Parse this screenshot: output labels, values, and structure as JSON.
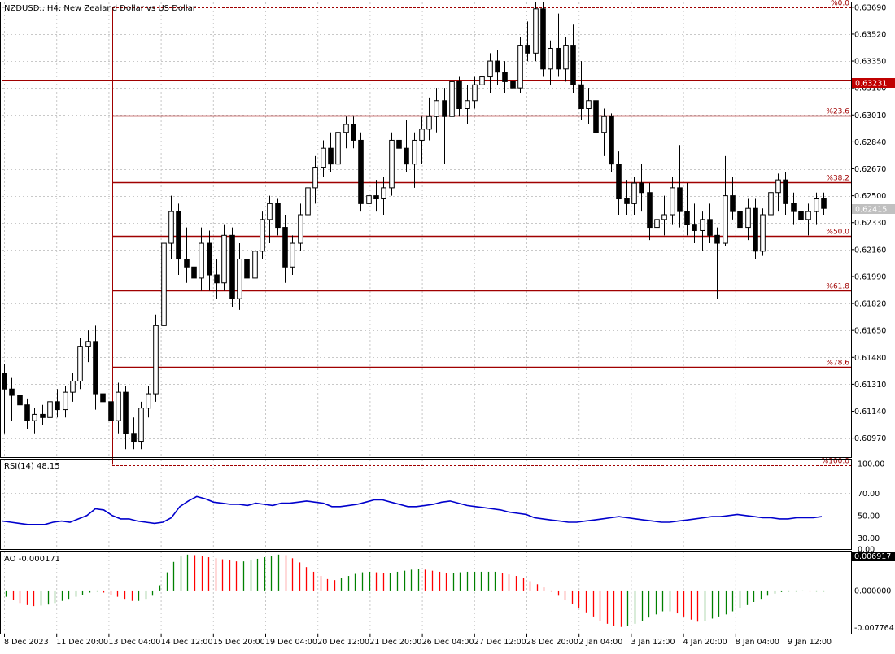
{
  "chart_data": [
    {
      "type": "candlestick",
      "title": "NZDUSD., H4:  New Zealand Dollar vs US Dollar",
      "ylim": [
        0.6085,
        0.6372
      ],
      "yticks": [
        "0.63690",
        "0.63520",
        "0.63350",
        "0.63180",
        "0.63010",
        "0.62840",
        "0.62670",
        "0.62500",
        "0.62330",
        "0.62160",
        "0.61990",
        "0.61820",
        "0.61650",
        "0.61480",
        "0.61310",
        "0.61140",
        "0.60970"
      ],
      "current_price": "0.62415",
      "hline_price": "0.63231",
      "fibonacci": [
        {
          "label": "%0.0",
          "price": 0.6369
        },
        {
          "label": "%23.6",
          "price": 0.63008
        },
        {
          "label": "%38.2",
          "price": 0.62586
        },
        {
          "label": "%50.0",
          "price": 0.62246
        },
        {
          "label": "%61.8",
          "price": 0.61905
        },
        {
          "label": "%78.6",
          "price": 0.6142
        },
        {
          "label": "%100.0",
          "price": 0.60801
        }
      ],
      "x_labels": [
        "8 Dec 2023",
        "11 Dec 20:00",
        "13 Dec 04:00",
        "14 Dec 12:00",
        "15 Dec 20:00",
        "19 Dec 04:00",
        "20 Dec 12:00",
        "21 Dec 20:00",
        "26 Dec 04:00",
        "27 Dec 12:00",
        "28 Dec 20:00",
        "2 Jan 04:00",
        "3 Jan 12:00",
        "4 Jan 20:00",
        "8 Jan 04:00",
        "9 Jan 12:00"
      ],
      "candles": [
        [
          0.6138,
          0.6144,
          0.61,
          0.6128
        ],
        [
          0.6128,
          0.6135,
          0.6108,
          0.6124
        ],
        [
          0.6124,
          0.613,
          0.6112,
          0.6118
        ],
        [
          0.6118,
          0.6122,
          0.6103,
          0.6108
        ],
        [
          0.6108,
          0.6116,
          0.61,
          0.6112
        ],
        [
          0.6112,
          0.6118,
          0.6105,
          0.611
        ],
        [
          0.611,
          0.6124,
          0.6106,
          0.612
        ],
        [
          0.612,
          0.6128,
          0.611,
          0.6115
        ],
        [
          0.6115,
          0.613,
          0.611,
          0.6126
        ],
        [
          0.6126,
          0.6138,
          0.612,
          0.6133
        ],
        [
          0.6133,
          0.616,
          0.6128,
          0.6155
        ],
        [
          0.6155,
          0.6165,
          0.6145,
          0.6158
        ],
        [
          0.6158,
          0.6168,
          0.6115,
          0.6125
        ],
        [
          0.6125,
          0.614,
          0.611,
          0.612
        ],
        [
          0.612,
          0.613,
          0.6102,
          0.6108
        ],
        [
          0.6108,
          0.6132,
          0.61,
          0.6126
        ],
        [
          0.6126,
          0.613,
          0.609,
          0.61
        ],
        [
          0.61,
          0.611,
          0.609,
          0.6095
        ],
        [
          0.6095,
          0.612,
          0.609,
          0.6116
        ],
        [
          0.6116,
          0.613,
          0.611,
          0.6125
        ],
        [
          0.6125,
          0.6175,
          0.612,
          0.6168
        ],
        [
          0.6168,
          0.623,
          0.616,
          0.622
        ],
        [
          0.622,
          0.625,
          0.621,
          0.624
        ],
        [
          0.624,
          0.6245,
          0.62,
          0.621
        ],
        [
          0.621,
          0.623,
          0.6195,
          0.6205
        ],
        [
          0.6205,
          0.6225,
          0.619,
          0.6198
        ],
        [
          0.6198,
          0.623,
          0.619,
          0.622
        ],
        [
          0.622,
          0.6228,
          0.619,
          0.62
        ],
        [
          0.62,
          0.621,
          0.6185,
          0.6195
        ],
        [
          0.6195,
          0.6232,
          0.619,
          0.6225
        ],
        [
          0.6225,
          0.623,
          0.618,
          0.6185
        ],
        [
          0.6185,
          0.622,
          0.6178,
          0.621
        ],
        [
          0.621,
          0.6215,
          0.619,
          0.6198
        ],
        [
          0.6198,
          0.622,
          0.618,
          0.6215
        ],
        [
          0.6215,
          0.624,
          0.621,
          0.6235
        ],
        [
          0.6235,
          0.625,
          0.622,
          0.6245
        ],
        [
          0.6245,
          0.6248,
          0.6225,
          0.623
        ],
        [
          0.623,
          0.6238,
          0.6195,
          0.6205
        ],
        [
          0.6205,
          0.6225,
          0.62,
          0.622
        ],
        [
          0.622,
          0.6245,
          0.6215,
          0.6238
        ],
        [
          0.6238,
          0.626,
          0.623,
          0.6255
        ],
        [
          0.6255,
          0.6275,
          0.6245,
          0.6268
        ],
        [
          0.6268,
          0.6285,
          0.6262,
          0.628
        ],
        [
          0.628,
          0.629,
          0.6265,
          0.627
        ],
        [
          0.627,
          0.6295,
          0.6265,
          0.629
        ],
        [
          0.629,
          0.63,
          0.628,
          0.6295
        ],
        [
          0.6295,
          0.63,
          0.628,
          0.6285
        ],
        [
          0.6285,
          0.629,
          0.624,
          0.6245
        ],
        [
          0.6245,
          0.626,
          0.623,
          0.625
        ],
        [
          0.625,
          0.626,
          0.624,
          0.6248
        ],
        [
          0.6248,
          0.6262,
          0.6238,
          0.6255
        ],
        [
          0.6255,
          0.629,
          0.625,
          0.6285
        ],
        [
          0.6285,
          0.6295,
          0.627,
          0.628
        ],
        [
          0.628,
          0.6298,
          0.6265,
          0.627
        ],
        [
          0.627,
          0.629,
          0.6255,
          0.6285
        ],
        [
          0.6285,
          0.63,
          0.627,
          0.6292
        ],
        [
          0.6292,
          0.6312,
          0.6285,
          0.63
        ],
        [
          0.63,
          0.6318,
          0.629,
          0.631
        ],
        [
          0.631,
          0.6318,
          0.627,
          0.63
        ],
        [
          0.63,
          0.6325,
          0.629,
          0.6322
        ],
        [
          0.6322,
          0.6325,
          0.63,
          0.6305
        ],
        [
          0.6305,
          0.632,
          0.6295,
          0.631
        ],
        [
          0.631,
          0.6325,
          0.6305,
          0.632
        ],
        [
          0.632,
          0.633,
          0.631,
          0.6325
        ],
        [
          0.6325,
          0.634,
          0.6315,
          0.6335
        ],
        [
          0.6335,
          0.6342,
          0.632,
          0.6328
        ],
        [
          0.6328,
          0.6335,
          0.6315,
          0.6322
        ],
        [
          0.6322,
          0.633,
          0.631,
          0.6318
        ],
        [
          0.6318,
          0.635,
          0.6315,
          0.6345
        ],
        [
          0.6345,
          0.636,
          0.6335,
          0.634
        ],
        [
          0.634,
          0.6372,
          0.6335,
          0.6368
        ],
        [
          0.6368,
          0.6372,
          0.6325,
          0.633
        ],
        [
          0.633,
          0.6348,
          0.632,
          0.6343
        ],
        [
          0.6343,
          0.6365,
          0.6325,
          0.633
        ],
        [
          0.633,
          0.635,
          0.6322,
          0.6345
        ],
        [
          0.6345,
          0.6358,
          0.6315,
          0.632
        ],
        [
          0.632,
          0.6335,
          0.6298,
          0.6305
        ],
        [
          0.6305,
          0.6318,
          0.6295,
          0.631
        ],
        [
          0.631,
          0.6318,
          0.628,
          0.629
        ],
        [
          0.629,
          0.6305,
          0.6275,
          0.63
        ],
        [
          0.63,
          0.6302,
          0.6265,
          0.627
        ],
        [
          0.627,
          0.6278,
          0.6238,
          0.6248
        ],
        [
          0.6248,
          0.626,
          0.6238,
          0.6245
        ],
        [
          0.6245,
          0.6262,
          0.6238,
          0.6258
        ],
        [
          0.6258,
          0.627,
          0.624,
          0.6252
        ],
        [
          0.6252,
          0.6258,
          0.6222,
          0.623
        ],
        [
          0.623,
          0.6242,
          0.6218,
          0.6235
        ],
        [
          0.6235,
          0.625,
          0.6225,
          0.6238
        ],
        [
          0.6238,
          0.6262,
          0.6232,
          0.6255
        ],
        [
          0.6255,
          0.6282,
          0.623,
          0.624
        ],
        [
          0.624,
          0.6258,
          0.6225,
          0.6232
        ],
        [
          0.6232,
          0.6245,
          0.622,
          0.6228
        ],
        [
          0.6228,
          0.624,
          0.6215,
          0.6235
        ],
        [
          0.6235,
          0.6245,
          0.622,
          0.6225
        ],
        [
          0.6225,
          0.623,
          0.6185,
          0.622
        ],
        [
          0.622,
          0.6275,
          0.6218,
          0.625
        ],
        [
          0.625,
          0.6262,
          0.6235,
          0.624
        ],
        [
          0.624,
          0.6255,
          0.6225,
          0.623
        ],
        [
          0.623,
          0.6248,
          0.6222,
          0.6242
        ],
        [
          0.6242,
          0.6248,
          0.621,
          0.6215
        ],
        [
          0.6215,
          0.6242,
          0.6212,
          0.6238
        ],
        [
          0.6238,
          0.6258,
          0.6232,
          0.6252
        ],
        [
          0.6252,
          0.6264,
          0.624,
          0.626
        ],
        [
          0.626,
          0.6265,
          0.6238,
          0.6245
        ],
        [
          0.6245,
          0.6252,
          0.6232,
          0.624
        ],
        [
          0.624,
          0.625,
          0.6225,
          0.6235
        ],
        [
          0.6235,
          0.6245,
          0.6225,
          0.624
        ],
        [
          0.624,
          0.6252,
          0.6232,
          0.6248
        ],
        [
          0.6248,
          0.6252,
          0.6238,
          0.6242
        ]
      ]
    },
    {
      "type": "line",
      "title": "RSI(14) 48.15",
      "ylim": [
        20,
        100
      ],
      "yticks": [
        "100.00",
        "70.00",
        "50.00",
        "30.00",
        "0.00"
      ],
      "reference_lines": [
        70,
        30
      ],
      "series": [
        {
          "color": "#0000cc",
          "values": [
            45,
            44,
            43,
            42,
            42,
            42,
            44,
            45,
            44,
            47,
            50,
            56,
            55,
            50,
            47,
            47,
            45,
            44,
            43,
            44,
            48,
            58,
            63,
            67,
            65,
            62,
            61,
            60,
            60,
            59,
            61,
            60,
            59,
            61,
            61,
            62,
            63,
            62,
            61,
            58,
            58,
            59,
            60,
            62,
            64,
            64,
            62,
            60,
            58,
            58,
            59,
            60,
            62,
            63,
            61,
            59,
            58,
            57,
            56,
            55,
            53,
            52,
            51,
            48,
            47,
            46,
            45,
            44,
            44,
            45,
            46,
            47,
            48,
            49,
            48,
            47,
            46,
            45,
            44,
            44,
            45,
            46,
            47,
            48,
            49,
            49,
            50,
            51,
            50,
            49,
            48,
            48,
            47,
            47,
            48,
            48,
            48,
            49
          ]
        }
      ]
    },
    {
      "type": "bar",
      "title": "AO -0.000171",
      "ylim": [
        -0.0083,
        0.0075
      ],
      "yticks": [
        "0.006917",
        "0.000000",
        "-0.007764"
      ],
      "colors": {
        "up": "#008000",
        "down": "#ff0000"
      },
      "values": [
        -0.0012,
        -0.0018,
        -0.0024,
        -0.0028,
        -0.003,
        -0.0029,
        -0.0027,
        -0.0024,
        -0.002,
        -0.0016,
        -0.0012,
        -0.0008,
        -0.0004,
        -0.0002,
        -0.0004,
        -0.0008,
        -0.0012,
        -0.0016,
        -0.002,
        -0.002,
        -0.0016,
        -0.001,
        0.001,
        0.0035,
        0.0055,
        0.0066,
        0.0069,
        0.0068,
        0.0066,
        0.0064,
        0.0062,
        0.006,
        0.0058,
        0.0056,
        0.0056,
        0.0058,
        0.0061,
        0.0064,
        0.0067,
        0.0069,
        0.0068,
        0.0062,
        0.0054,
        0.0045,
        0.0036,
        0.0028,
        0.0022,
        0.002,
        0.0024,
        0.0028,
        0.0032,
        0.0035,
        0.0036,
        0.0035,
        0.0034,
        0.0034,
        0.0036,
        0.0038,
        0.004,
        0.0042,
        0.004,
        0.0038,
        0.0036,
        0.0034,
        0.0034,
        0.0035,
        0.0036,
        0.0036,
        0.0036,
        0.0036,
        0.0036,
        0.0034,
        0.0031,
        0.0028,
        0.0024,
        0.0018,
        0.0012,
        0.0006,
        -0.0002,
        -0.001,
        -0.0018,
        -0.0026,
        -0.0034,
        -0.0042,
        -0.005,
        -0.0058,
        -0.0064,
        -0.0068,
        -0.007,
        -0.0068,
        -0.0064,
        -0.0058,
        -0.0052,
        -0.0046,
        -0.004,
        -0.004,
        -0.0044,
        -0.005,
        -0.0056,
        -0.006,
        -0.0058,
        -0.0054,
        -0.005,
        -0.0046,
        -0.004,
        -0.0034,
        -0.0028,
        -0.0022,
        -0.0016,
        -0.001,
        -0.0006,
        -0.0003,
        -0.0002,
        -0.0002,
        -0.0001,
        -0.0002,
        -0.0002,
        -0.0002
      ]
    }
  ]
}
